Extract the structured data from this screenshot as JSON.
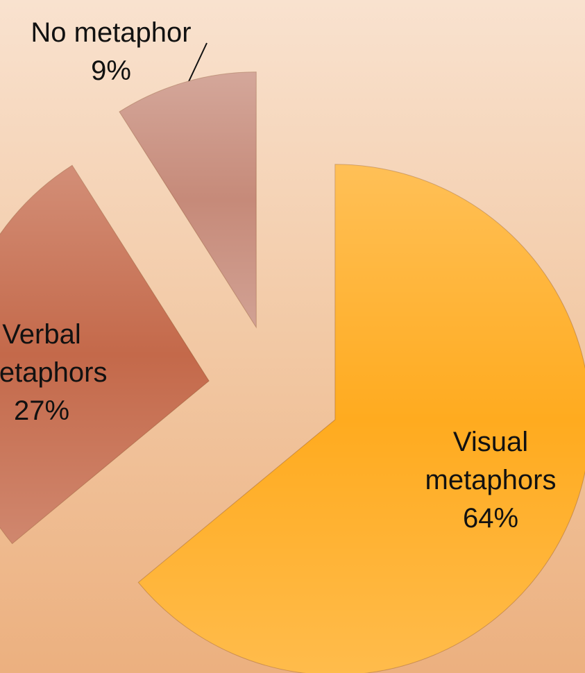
{
  "chart_data": {
    "type": "pie",
    "categories": [
      "Visual metaphors",
      "Verbal metaphors",
      "No metaphor"
    ],
    "values": [
      64,
      27,
      9
    ],
    "value_labels": [
      "64%",
      "27%",
      "9%"
    ],
    "colors": [
      "#ffab1f",
      "#c4694a",
      "#c68a79"
    ]
  }
}
